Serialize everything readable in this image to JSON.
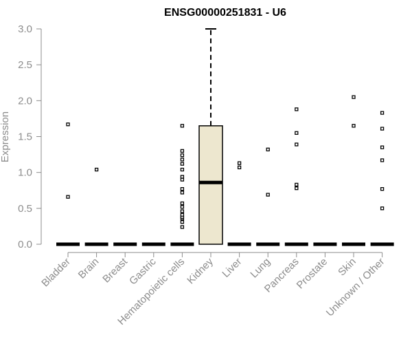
{
  "chart_data": {
    "type": "box",
    "title": "ENSG00000251831 - U6",
    "xlabel": "",
    "ylabel": "Expression",
    "ylim": [
      0,
      3.0
    ],
    "yticks": [
      "0.0",
      "0.5",
      "1.0",
      "1.5",
      "2.0",
      "2.5",
      "3.0"
    ],
    "grid": false,
    "box_fill": "#ede7cf",
    "categories": [
      "Bladder",
      "Brain",
      "Breast",
      "Gastric",
      "Hematopoietic cells",
      "Kidney",
      "Liver",
      "Lung",
      "Pancreas",
      "Prostate",
      "Skin",
      "Unknown / Other"
    ],
    "boxes": [
      {
        "category": "Bladder",
        "q1": 0,
        "median": 0,
        "q3": 0,
        "whisker_low": 0,
        "whisker_high": 0,
        "outliers": [
          0.66,
          1.67
        ]
      },
      {
        "category": "Brain",
        "q1": 0,
        "median": 0,
        "q3": 0,
        "whisker_low": 0,
        "whisker_high": 0,
        "outliers": [
          1.04
        ]
      },
      {
        "category": "Breast",
        "q1": 0,
        "median": 0,
        "q3": 0,
        "whisker_low": 0,
        "whisker_high": 0,
        "outliers": []
      },
      {
        "category": "Gastric",
        "q1": 0,
        "median": 0,
        "q3": 0,
        "whisker_low": 0,
        "whisker_high": 0,
        "outliers": []
      },
      {
        "category": "Hematopoietic cells",
        "q1": 0,
        "median": 0,
        "q3": 0,
        "whisker_low": 0,
        "whisker_high": 0,
        "outliers": [
          0.24,
          0.31,
          0.36,
          0.38,
          0.41,
          0.46,
          0.52,
          0.57,
          0.72,
          0.77,
          0.9,
          0.94,
          1.04,
          1.12,
          1.18,
          1.24,
          1.3,
          1.65
        ]
      },
      {
        "category": "Kidney",
        "q1": 0,
        "median": 0.86,
        "q3": 1.65,
        "whisker_low": 0,
        "whisker_high": 3.0,
        "outliers": []
      },
      {
        "category": "Liver",
        "q1": 0,
        "median": 0,
        "q3": 0,
        "whisker_low": 0,
        "whisker_high": 0,
        "outliers": [
          1.07,
          1.13
        ]
      },
      {
        "category": "Lung",
        "q1": 0,
        "median": 0,
        "q3": 0,
        "whisker_low": 0,
        "whisker_high": 0,
        "outliers": [
          0.69,
          1.32
        ]
      },
      {
        "category": "Pancreas",
        "q1": 0,
        "median": 0,
        "q3": 0,
        "whisker_low": 0,
        "whisker_high": 0,
        "outliers": [
          0.78,
          0.83,
          1.39,
          1.55,
          1.88
        ]
      },
      {
        "category": "Prostate",
        "q1": 0,
        "median": 0,
        "q3": 0,
        "whisker_low": 0,
        "whisker_high": 0,
        "outliers": []
      },
      {
        "category": "Skin",
        "q1": 0,
        "median": 0,
        "q3": 0,
        "whisker_low": 0,
        "whisker_high": 0,
        "outliers": [
          1.65,
          2.05
        ]
      },
      {
        "category": "Unknown / Other",
        "q1": 0,
        "median": 0,
        "q3": 0,
        "whisker_low": 0,
        "whisker_high": 0,
        "outliers": [
          0.5,
          0.77,
          1.17,
          1.35,
          1.61,
          1.83
        ]
      }
    ]
  }
}
